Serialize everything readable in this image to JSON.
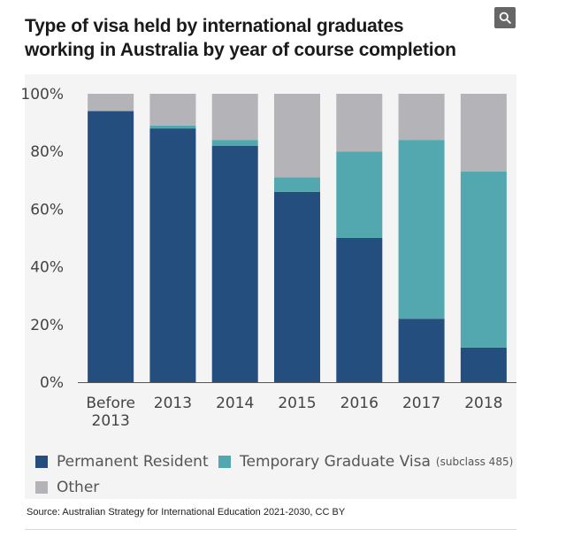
{
  "title_line1": "Type of visa held by international graduates",
  "title_line2": "working in Australia by year of course completion",
  "search_icon": "search-icon",
  "legend": {
    "permanent": "Permanent Resident",
    "temporary": "Temporary Graduate Visa",
    "temporary_note": "(subclass 485)",
    "other": "Other"
  },
  "source": "Source: Australian Strategy for International Education 2021-2030, CC BY",
  "colors": {
    "permanent": "#234e7e",
    "temporary": "#53a8b0",
    "other": "#b4b4b8",
    "background": "#f4f4f4"
  },
  "chart_data": {
    "type": "bar",
    "stacked": true,
    "title": "Type of visa held by international graduates working in Australia by year of course completion",
    "categories": [
      [
        "Before",
        "2013"
      ],
      [
        "2013"
      ],
      [
        "2014"
      ],
      [
        "2015"
      ],
      [
        "2016"
      ],
      [
        "2017"
      ],
      [
        "2018"
      ]
    ],
    "series": [
      {
        "name": "Permanent Resident",
        "values": [
          94,
          88,
          82,
          66,
          50,
          22,
          12
        ]
      },
      {
        "name": "Temporary Graduate Visa (subclass 485)",
        "values": [
          0,
          1,
          2,
          5,
          30,
          62,
          61
        ]
      },
      {
        "name": "Other",
        "values": [
          6,
          11,
          16,
          29,
          20,
          16,
          27
        ]
      }
    ],
    "yticks": [
      "0%",
      "20%",
      "40%",
      "60%",
      "80%",
      "100%"
    ],
    "ylim": [
      0,
      100
    ],
    "grid": false,
    "legend_position": "bottom"
  }
}
